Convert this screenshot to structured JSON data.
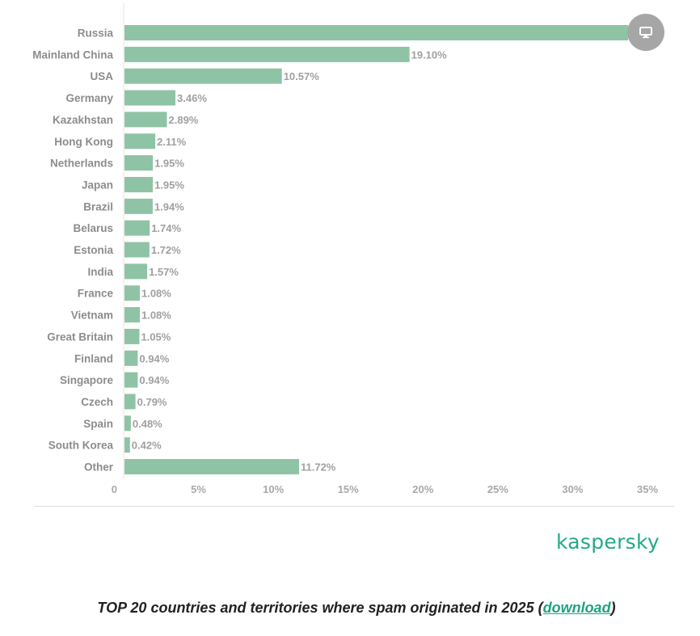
{
  "chart_data": {
    "type": "bar",
    "orientation": "horizontal",
    "categories": [
      "Russia",
      "Mainland China",
      "USA",
      "Germany",
      "Kazakhstan",
      "Hong Kong",
      "Netherlands",
      "Japan",
      "Brazil",
      "Belarus",
      "Estonia",
      "India",
      "France",
      "Vietnam",
      "Great Britain",
      "Finland",
      "Singapore",
      "Czech",
      "Spain",
      "South Korea",
      "Other"
    ],
    "values": [
      33.7,
      19.1,
      10.57,
      3.46,
      2.89,
      2.11,
      1.95,
      1.95,
      1.94,
      1.74,
      1.72,
      1.57,
      1.08,
      1.08,
      1.05,
      0.94,
      0.94,
      0.79,
      0.48,
      0.42,
      11.72
    ],
    "value_labels": [
      "",
      "19.10%",
      "10.57%",
      "3.46%",
      "2.89%",
      "2.11%",
      "1.95%",
      "1.95%",
      "1.94%",
      "1.74%",
      "1.72%",
      "1.57%",
      "1.08%",
      "1.08%",
      "1.05%",
      "0.94%",
      "0.94%",
      "0.79%",
      "0.48%",
      "0.42%",
      "11.72%"
    ],
    "xlim": [
      0,
      35
    ],
    "x_ticks": [
      "0",
      "5%",
      "10%",
      "15%",
      "20%",
      "25%",
      "30%",
      "35%"
    ],
    "grid": false,
    "bar_color": "#8fc3a6"
  },
  "view_button": {
    "icon": "monitor-icon"
  },
  "brand": "kaspersky",
  "caption": {
    "text": "TOP 20 countries and territories where spam originated in 2025 (",
    "link": "download",
    "suffix": ")"
  },
  "colors": {
    "accent": "#1ea384"
  }
}
